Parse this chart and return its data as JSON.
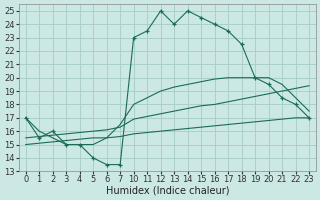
{
  "xlabel": "Humidex (Indice chaleur)",
  "bg_color": "#cce8e4",
  "grid_color": "#aacfca",
  "line_color": "#1a6b5a",
  "tick_labels": [
    "0",
    "1",
    "2",
    "3",
    "4",
    "5",
    "6",
    "7",
    "10",
    "11",
    "12",
    "13",
    "14",
    "15",
    "16",
    "17",
    "18",
    "19",
    "20",
    "21",
    "22",
    "23"
  ],
  "ylim": [
    13,
    25.5
  ],
  "yticks": [
    13,
    14,
    15,
    16,
    17,
    18,
    19,
    20,
    21,
    22,
    23,
    24,
    25
  ],
  "main_y": [
    17.0,
    15.5,
    16.0,
    15.0,
    15.0,
    14.0,
    13.5,
    13.5,
    23.0,
    23.5,
    25.0,
    24.0,
    25.0,
    24.5,
    24.0,
    23.5,
    22.5,
    20.0,
    19.5,
    18.5,
    18.0,
    17.0
  ],
  "trend1_y": [
    17.0,
    16.0,
    15.5,
    15.0,
    15.0,
    15.0,
    15.5,
    16.5,
    18.0,
    18.5,
    19.0,
    19.3,
    19.5,
    19.7,
    19.9,
    20.0,
    20.0,
    20.0,
    20.0,
    19.5,
    18.5,
    17.5
  ],
  "trend2_y": [
    15.5,
    15.6,
    15.7,
    15.8,
    15.9,
    16.0,
    16.1,
    16.3,
    16.9,
    17.1,
    17.3,
    17.5,
    17.7,
    17.9,
    18.0,
    18.2,
    18.4,
    18.6,
    18.8,
    19.0,
    19.2,
    19.4
  ],
  "trend3_y": [
    15.0,
    15.1,
    15.2,
    15.3,
    15.4,
    15.5,
    15.5,
    15.6,
    15.8,
    15.9,
    16.0,
    16.1,
    16.2,
    16.3,
    16.4,
    16.5,
    16.6,
    16.7,
    16.8,
    16.9,
    17.0,
    17.0
  ],
  "fontsize_label": 7,
  "fontsize_tick": 6
}
